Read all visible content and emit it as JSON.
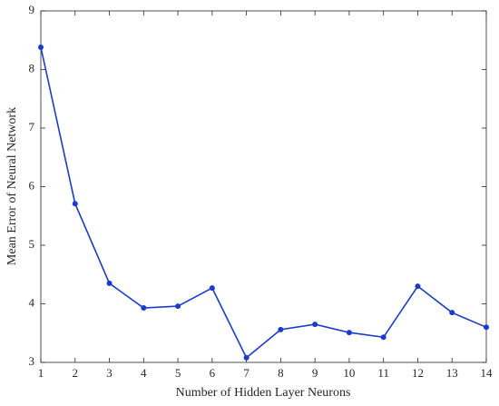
{
  "chart_data": {
    "type": "line",
    "xlabel": "Number of Hidden Layer Neurons",
    "ylabel": "Mean Error of Neural Network",
    "x": [
      1,
      2,
      3,
      4,
      5,
      6,
      7,
      8,
      9,
      10,
      11,
      12,
      13,
      14
    ],
    "series": [
      {
        "color": "#1a3ccc",
        "values": [
          8.38,
          5.71,
          4.35,
          3.93,
          3.96,
          4.27,
          3.08,
          3.56,
          3.65,
          3.51,
          3.43,
          4.3,
          3.85,
          3.6
        ]
      }
    ],
    "xlim": [
      1,
      14
    ],
    "xticks": [
      1,
      2,
      3,
      4,
      5,
      6,
      7,
      8,
      9,
      10,
      11,
      12,
      13,
      14
    ],
    "ylim": [
      3,
      9
    ],
    "yticks": [
      3,
      4,
      5,
      6,
      7,
      8,
      9
    ],
    "grid": false
  }
}
